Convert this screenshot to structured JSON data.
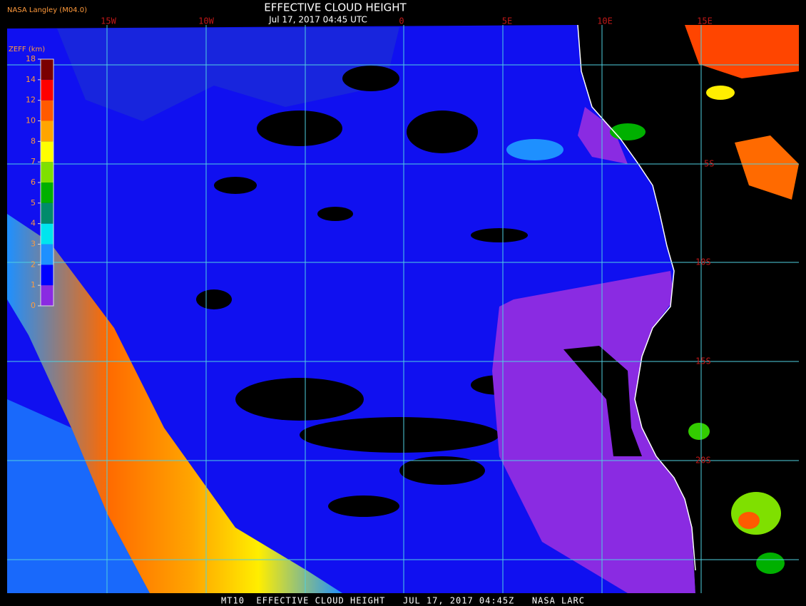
{
  "header": {
    "source": "NASA Langley (M04.0)",
    "title": "EFFECTIVE CLOUD HEIGHT",
    "subtitle": "Jul 17, 2017 04:45 UTC"
  },
  "colorbar": {
    "label": "ZEFF (km)",
    "ticks": [
      0,
      1,
      2,
      3,
      4,
      5,
      6,
      7,
      8,
      10,
      12,
      14,
      18
    ],
    "colors": [
      "#8a2be2",
      "#0000ff",
      "#1e90ff",
      "#00e5ee",
      "#008b6b",
      "#00b000",
      "#7fe000",
      "#ffff00",
      "#ffa500",
      "#ff5a00",
      "#ff0000",
      "#7a0000"
    ]
  },
  "map": {
    "longitude_labels": [
      "15W",
      "10W",
      "0",
      "5E",
      "10E",
      "15E"
    ],
    "latitude_labels": [
      "5S",
      "10S",
      "15S",
      "20S"
    ]
  },
  "footer": {
    "text": "MT10  EFFECTIVE CLOUD HEIGHT   JUL 17, 2017 04:45Z   NASA LARC"
  }
}
